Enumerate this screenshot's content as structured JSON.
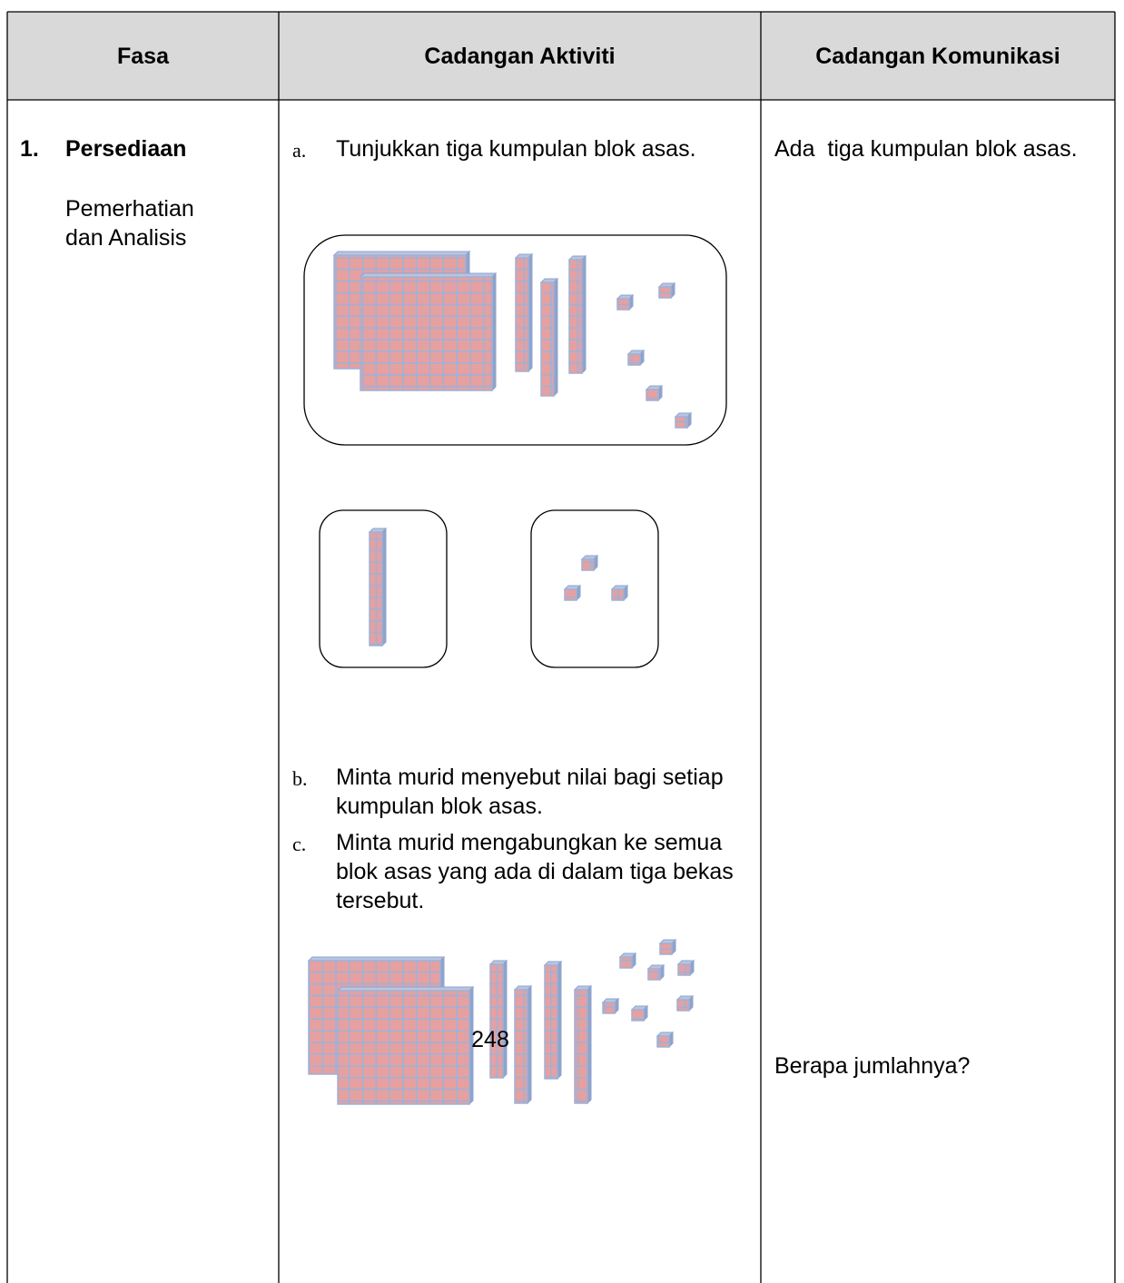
{
  "header": {
    "columns": [
      "Fasa",
      "Cadangan Aktiviti",
      "Cadangan Komunikasi"
    ]
  },
  "phase": {
    "number": "1.",
    "title": "Persediaan",
    "subtitle": "Pemerhatian dan Analisis"
  },
  "activities": [
    {
      "marker": "a.",
      "text": "Tunjukkan tiga kumpulan blok asas."
    },
    {
      "marker": "b.",
      "text": "Minta murid menyebut nilai bagi setiap kumpulan blok asas."
    },
    {
      "marker": "c.",
      "text": "Minta murid mengabungkan ke semua blok asas yang ada di dalam tiga bekas tersebut."
    }
  ],
  "total_label": "248",
  "communication": [
    "Ada  tiga kumpulan blok asas.",
    "Berapa jumlahnya?"
  ]
}
